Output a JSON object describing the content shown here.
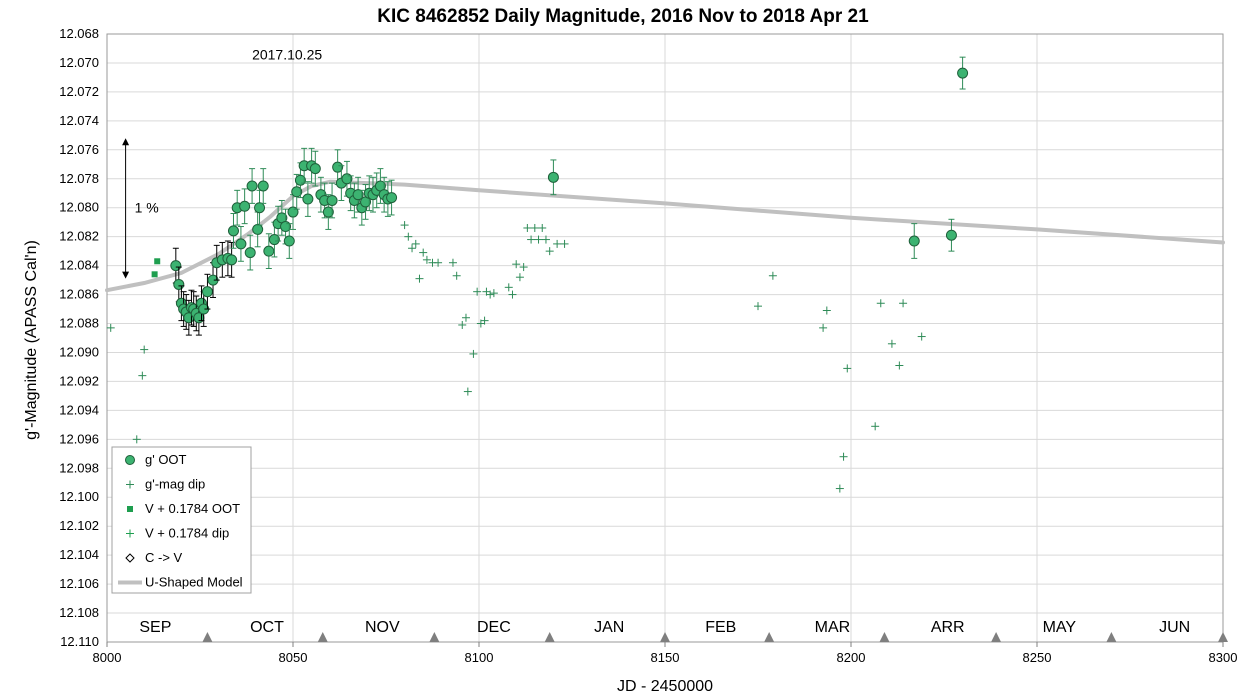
{
  "chart_data": {
    "type": "scatter",
    "title": "KIC 8462852 Daily Magnitude,  2016 Nov to 2018 Apr 21",
    "xlabel": "JD - 2450000",
    "ylabel": "g'-Magnitude (APASS Cal'n)",
    "xlim": [
      8000,
      8300
    ],
    "ylim": [
      12.068,
      12.11
    ],
    "y_inverted": true,
    "x_ticks": [
      8000,
      8050,
      8100,
      8150,
      8200,
      8250,
      8300
    ],
    "y_ticks": [
      "12.068",
      "12.070",
      "12.072",
      "12.074",
      "12.076",
      "12.078",
      "12.080",
      "12.082",
      "12.084",
      "12.086",
      "12.088",
      "12.090",
      "12.092",
      "12.094",
      "12.096",
      "12.098",
      "12.100",
      "12.102",
      "12.104",
      "12.106",
      "12.108",
      "12.110"
    ],
    "grid": "both",
    "legend_position": "bottom-left",
    "annotations": {
      "date": {
        "text": "2017.10.25",
        "x": 8039,
        "y": 12.0694
      },
      "scale": {
        "text": "1 %",
        "x": 8005,
        "y_top": 12.0752,
        "y_bottom": 12.0849
      },
      "months": [
        {
          "label": "SEP",
          "x": 8013
        },
        {
          "label": "OCT",
          "x": 8043
        },
        {
          "label": "NOV",
          "x": 8074
        },
        {
          "label": "DEC",
          "x": 8104
        },
        {
          "label": "JAN",
          "x": 8135
        },
        {
          "label": "FEB",
          "x": 8165
        },
        {
          "label": "MAR",
          "x": 8195
        },
        {
          "label": "ARR",
          "x": 8226
        },
        {
          "label": "MAY",
          "x": 8256
        },
        {
          "label": "JUN",
          "x": 8287
        }
      ],
      "month_markers": [
        8027,
        8058,
        8088,
        8119,
        8150,
        8178,
        8209,
        8239,
        8270,
        8300
      ]
    },
    "series": [
      {
        "name": "g' OOT",
        "marker": "circle",
        "color": "#3cb371",
        "points": [
          [
            8018.5,
            12.084,
            0.0012
          ],
          [
            8019.3,
            12.0853,
            0.0012
          ],
          [
            8020,
            12.0866,
            0.0012
          ],
          [
            8020.6,
            12.087,
            0.0012
          ],
          [
            8021.3,
            12.0872,
            0.0012
          ],
          [
            8022,
            12.0876,
            0.0012
          ],
          [
            8022.7,
            12.0869,
            0.0012
          ],
          [
            8023.3,
            12.087,
            0.0012
          ],
          [
            8024,
            12.0873,
            0.0012
          ],
          [
            8024.7,
            12.0876,
            0.0012
          ],
          [
            8025.4,
            12.0866,
            0.0012
          ],
          [
            8026,
            12.087,
            0.0012
          ],
          [
            8027,
            12.0858,
            0.0012
          ],
          [
            8028.5,
            12.085,
            0.0012
          ],
          [
            8029.5,
            12.0838,
            0.0012
          ],
          [
            8031,
            12.0836,
            0.0012
          ],
          [
            8032.5,
            12.0835,
            0.0012
          ],
          [
            8033.5,
            12.0836,
            0.0012
          ],
          [
            8034,
            12.0816,
            0.0012
          ],
          [
            8035,
            12.08,
            0.0012
          ],
          [
            8036,
            12.0825,
            0.0012
          ],
          [
            8037,
            12.0799,
            0.0012
          ],
          [
            8038.5,
            12.0831,
            0.0012
          ],
          [
            8039,
            12.0785,
            0.0012
          ],
          [
            8040.5,
            12.0815,
            0.0012
          ],
          [
            8041,
            12.08,
            0.0012
          ],
          [
            8042,
            12.0785,
            0.0012
          ],
          [
            8043.5,
            12.083,
            0.0012
          ],
          [
            8045,
            12.0822,
            0.0012
          ],
          [
            8046,
            12.0811,
            0.0012
          ],
          [
            8047,
            12.0807,
            0.0012
          ],
          [
            8048,
            12.0813,
            0.0012
          ],
          [
            8049,
            12.0823,
            0.0012
          ],
          [
            8050,
            12.0803,
            0.0012
          ],
          [
            8051,
            12.0789,
            0.0012
          ],
          [
            8052,
            12.0781,
            0.0012
          ],
          [
            8053,
            12.0771,
            0.0012
          ],
          [
            8054,
            12.0794,
            0.0012
          ],
          [
            8055,
            12.0771,
            0.0012
          ],
          [
            8056,
            12.0773,
            0.0012
          ],
          [
            8057.5,
            12.0791,
            0.0012
          ],
          [
            8058.5,
            12.0795,
            0.0012
          ],
          [
            8059.5,
            12.0803,
            0.0012
          ],
          [
            8060.5,
            12.0795,
            0.0012
          ],
          [
            8062,
            12.0772,
            0.0012
          ],
          [
            8063,
            12.0783,
            0.0012
          ],
          [
            8064.5,
            12.078,
            0.0012
          ],
          [
            8065.5,
            12.079,
            0.0012
          ],
          [
            8066.5,
            12.0795,
            0.0012
          ],
          [
            8067.5,
            12.0791,
            0.0012
          ],
          [
            8068.5,
            12.08,
            0.0012
          ],
          [
            8069.5,
            12.0796,
            0.0012
          ],
          [
            8070.5,
            12.079,
            0.0012
          ],
          [
            8071.5,
            12.0791,
            0.0012
          ],
          [
            8072.5,
            12.0788,
            0.0012
          ],
          [
            8073.5,
            12.0785,
            0.0012
          ],
          [
            8074.5,
            12.0791,
            0.0012
          ],
          [
            8075.5,
            12.0794,
            0.0012
          ],
          [
            8076.5,
            12.0793,
            0.0012
          ],
          [
            8120,
            12.0779,
            0.0012
          ],
          [
            8217,
            12.0823,
            0.0012
          ],
          [
            8227,
            12.0819,
            0.0011
          ],
          [
            8230,
            12.0707,
            0.0011
          ]
        ]
      },
      {
        "name": "g'-mag dip",
        "marker": "plus",
        "color": "#2e8b57",
        "points": [
          [
            8001,
            12.0883
          ],
          [
            8010,
            12.0898
          ],
          [
            8009.5,
            12.0916
          ],
          [
            8008,
            12.096
          ],
          [
            8080,
            12.0812
          ],
          [
            8081,
            12.082
          ],
          [
            8082,
            12.0828
          ],
          [
            8083,
            12.0825
          ],
          [
            8084,
            12.0849
          ],
          [
            8085,
            12.0831
          ],
          [
            8086,
            12.0836
          ],
          [
            8087.5,
            12.0838
          ],
          [
            8089,
            12.0838
          ],
          [
            8093,
            12.0838
          ],
          [
            8094,
            12.0847
          ],
          [
            8095.5,
            12.0881
          ],
          [
            8096.5,
            12.0876
          ],
          [
            8097,
            12.0927
          ],
          [
            8098.5,
            12.0901
          ],
          [
            8099.5,
            12.0858
          ],
          [
            8100.5,
            12.088
          ],
          [
            8101.5,
            12.0878
          ],
          [
            8102,
            12.0858
          ],
          [
            8103,
            12.086
          ],
          [
            8104,
            12.0859
          ],
          [
            8108,
            12.0855
          ],
          [
            8109,
            12.086
          ],
          [
            8110,
            12.0839
          ],
          [
            8111,
            12.0848
          ],
          [
            8112,
            12.0841
          ],
          [
            8113,
            12.0814
          ],
          [
            8114,
            12.0822
          ],
          [
            8115,
            12.0814
          ],
          [
            8116,
            12.0822
          ],
          [
            8117,
            12.0814
          ],
          [
            8118,
            12.0822
          ],
          [
            8119,
            12.083
          ],
          [
            8121,
            12.0825
          ],
          [
            8123,
            12.0825
          ],
          [
            8175,
            12.0868
          ],
          [
            8179,
            12.0847
          ],
          [
            8192.5,
            12.0883
          ],
          [
            8193.5,
            12.0871
          ],
          [
            8197,
            12.0994
          ],
          [
            8198,
            12.0972
          ],
          [
            8199,
            12.0911
          ],
          [
            8206.5,
            12.0951
          ],
          [
            8208,
            12.0866
          ],
          [
            8211,
            12.0894
          ],
          [
            8213,
            12.0909
          ],
          [
            8214,
            12.0866
          ],
          [
            8219,
            12.0889
          ]
        ]
      },
      {
        "name": "V + 0.1784 OOT",
        "marker": "square",
        "color": "#1e9e4f",
        "points": [
          [
            8013.5,
            12.0837
          ],
          [
            8012.8,
            12.0846
          ]
        ]
      },
      {
        "name": "V + 0.1784 dip",
        "marker": "plus",
        "color": "#1e9e4f",
        "points": []
      },
      {
        "name": "C -> V",
        "marker": "diamond",
        "color": "#000000",
        "points": []
      },
      {
        "name": "U-Shaped Model",
        "marker": "line",
        "color": "#c0c0c0",
        "points": [
          [
            8000,
            12.0857
          ],
          [
            8010,
            12.0852
          ],
          [
            8020,
            12.0845
          ],
          [
            8030,
            12.0832
          ],
          [
            8038,
            12.0818
          ],
          [
            8044,
            12.0806
          ],
          [
            8050,
            12.0792
          ],
          [
            8055,
            12.0785
          ],
          [
            8060,
            12.0782
          ],
          [
            8070,
            12.0783
          ],
          [
            8080,
            12.0784
          ],
          [
            8100,
            12.0788
          ],
          [
            8150,
            12.0797
          ],
          [
            8200,
            12.0807
          ],
          [
            8250,
            12.0815
          ],
          [
            8300,
            12.0824
          ]
        ]
      }
    ]
  }
}
